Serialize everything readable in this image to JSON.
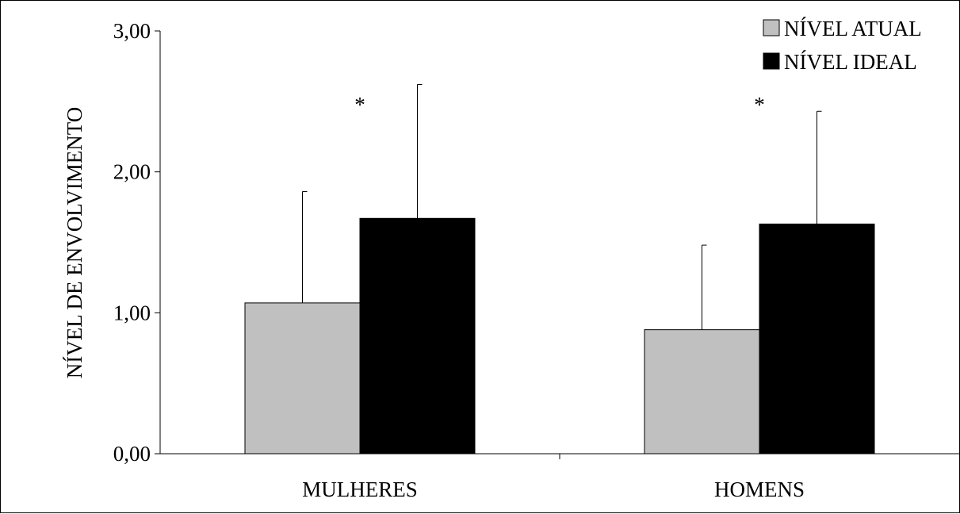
{
  "chart_data": {
    "type": "bar",
    "categories": [
      "MULHERES",
      "HOMENS"
    ],
    "series": [
      {
        "name": "NÍVEL ATUAL",
        "color": "#c0c0c0",
        "values": [
          1.07,
          0.88
        ],
        "error_upper": [
          0.79,
          0.6
        ]
      },
      {
        "name": "NÍVEL IDEAL",
        "color": "#000000",
        "values": [
          1.67,
          1.63
        ],
        "error_upper": [
          0.95,
          0.8
        ]
      }
    ],
    "annotations": [
      "*",
      "*"
    ],
    "title": "",
    "xlabel": "",
    "ylabel": "NÍVEL DE ENVOLVIMENTO",
    "ylim": [
      0,
      3
    ],
    "yticks": [
      "0,00",
      "1,00",
      "2,00",
      "3,00"
    ],
    "ytick_values": [
      0,
      1,
      2,
      3
    ],
    "grid": false,
    "legend_position": "top-right"
  }
}
